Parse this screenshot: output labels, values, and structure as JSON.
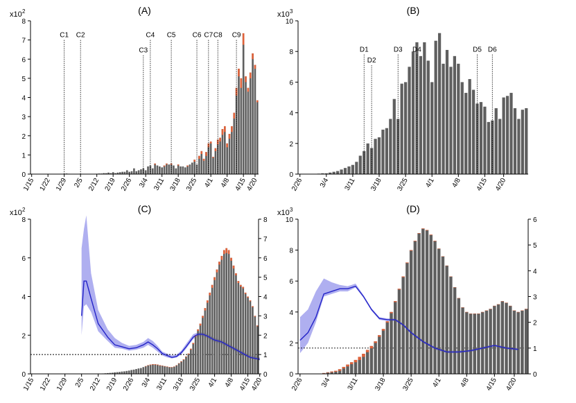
{
  "colors": {
    "bar": "#5f5f5f",
    "bar_top": "#e0623a",
    "line": "#2323c8",
    "band": "#a6a6ee",
    "axis": "#000000"
  },
  "chart_data": [
    {
      "id": "A",
      "type": "bar",
      "title": "(A)",
      "exponent_label": "x10",
      "exponent_power": "2",
      "ylim": [
        0,
        8
      ],
      "yticks": [
        "0",
        "1",
        "2",
        "3",
        "4",
        "5",
        "6",
        "7",
        "8"
      ],
      "x_start": "1/15",
      "xtick_labels": [
        "1/15",
        "1/22",
        "1/29",
        "2/5",
        "2/12",
        "2/19",
        "2/26",
        "3/4",
        "3/11",
        "3/18",
        "3/25",
        "4/1",
        "4/8",
        "4/15",
        "4/20"
      ],
      "xtick_index": [
        0,
        7,
        14,
        21,
        28,
        35,
        42,
        49,
        56,
        63,
        70,
        77,
        84,
        91,
        96
      ],
      "series": [
        {
          "name": "cases",
          "values": [
            0,
            0,
            0,
            0,
            0,
            0,
            0,
            0,
            0,
            0,
            0,
            0,
            0,
            0,
            0.02,
            0.03,
            0.02,
            0,
            0,
            0,
            0,
            0,
            0,
            0,
            0,
            0,
            0,
            0,
            0.02,
            0.03,
            0.03,
            0.05,
            0.05,
            0.08,
            0.05,
            0.1,
            0.05,
            0.08,
            0.1,
            0.12,
            0.12,
            0.2,
            0.12,
            0.15,
            0.3,
            0.15,
            0.2,
            0.25,
            0.3,
            0.2,
            0.4,
            0.45,
            0.3,
            0.55,
            0.45,
            0.4,
            0.35,
            0.45,
            0.55,
            0.5,
            0.55,
            0.45,
            0.3,
            0.5,
            0.4,
            0.4,
            0.35,
            0.45,
            0.5,
            0.6,
            0.75,
            0.5,
            0.95,
            1.2,
            0.8,
            1.15,
            1.6,
            1.7,
            0.9,
            1.35,
            1.8,
            1.9,
            2.35,
            2.5,
            1.6,
            2.1,
            2.5,
            3.2,
            4.5,
            5.5,
            5,
            7.35,
            5.1,
            4.5,
            5.3,
            6.3,
            5.7,
            3.85
          ]
        },
        {
          "name": "recent_cases",
          "values": [
            0,
            0,
            0,
            0,
            0,
            0,
            0,
            0,
            0,
            0,
            0,
            0,
            0,
            0,
            0,
            0,
            0,
            0,
            0,
            0,
            0,
            0,
            0,
            0,
            0,
            0,
            0,
            0,
            0,
            0,
            0,
            0,
            0,
            0,
            0,
            0,
            0,
            0,
            0,
            0,
            0,
            0,
            0,
            0,
            0,
            0,
            0,
            0,
            0,
            0,
            0,
            0,
            0,
            0.05,
            0,
            0,
            0,
            0.05,
            0.05,
            0,
            0.05,
            0,
            0,
            0.05,
            0,
            0,
            0,
            0.05,
            0,
            0,
            0.1,
            0,
            0.15,
            0.15,
            0.1,
            0.2,
            0.2,
            0.1,
            0.05,
            0.15,
            0.25,
            0.2,
            0.3,
            0.3,
            0.2,
            0.25,
            0.3,
            0.3,
            0.4,
            0.4,
            0.5,
            0.6,
            0.3,
            0.2,
            0.3,
            0.3,
            0.2,
            0.1
          ]
        }
      ],
      "markers": [
        {
          "label": "C1",
          "x": 14,
          "top": 7.0
        },
        {
          "label": "C2",
          "x": 21,
          "top": 7.0
        },
        {
          "label": "C3",
          "x": 48,
          "top": 6.2
        },
        {
          "label": "C4",
          "x": 51,
          "top": 7.0
        },
        {
          "label": "C5",
          "x": 60,
          "top": 7.0
        },
        {
          "label": "C6",
          "x": 71,
          "top": 7.0
        },
        {
          "label": "C7",
          "x": 76,
          "top": 7.0
        },
        {
          "label": "C8",
          "x": 80,
          "top": 7.0
        },
        {
          "label": "C9",
          "x": 88,
          "top": 7.0
        }
      ]
    },
    {
      "id": "B",
      "type": "bar",
      "title": "(B)",
      "exponent_label": "x10",
      "exponent_power": "3",
      "ylim": [
        0,
        10
      ],
      "yticks": [
        "0",
        "2",
        "4",
        "6",
        "8",
        "10"
      ],
      "x_start": "2/26",
      "xtick_labels": [
        "2/26",
        "3/4",
        "3/11",
        "3/18",
        "3/25",
        "4/1",
        "4/8",
        "4/15",
        "4/20"
      ],
      "xtick_index": [
        0,
        7,
        14,
        21,
        28,
        35,
        42,
        49,
        54
      ],
      "series": [
        {
          "name": "cases",
          "values": [
            0,
            0,
            0,
            0,
            0.02,
            0.03,
            0.05,
            0.05,
            0.1,
            0.15,
            0.2,
            0.3,
            0.4,
            0.5,
            0.6,
            0.8,
            1.2,
            1.5,
            2.0,
            1.7,
            2.3,
            2.4,
            2.9,
            3.0,
            3.6,
            4.9,
            3.6,
            5.9,
            6.0,
            7.0,
            8.0,
            8.6,
            7.7,
            8.6,
            7.4,
            6.0,
            8.7,
            9.2,
            7.2,
            8.1,
            7.0,
            7.7,
            7.2,
            6.0,
            5.3,
            6.2,
            5.5,
            4.6,
            4.7,
            4.4,
            3.4,
            3.5,
            4.3,
            3.6,
            5.0,
            5.1,
            5.3,
            4.3,
            3.6,
            4.2,
            4.3
          ]
        }
      ],
      "markers": [
        {
          "label": "D1",
          "x": 17,
          "top": 7.8
        },
        {
          "label": "D2",
          "x": 19,
          "top": 7.1
        },
        {
          "label": "D3",
          "x": 26,
          "top": 7.8
        },
        {
          "label": "D4",
          "x": 31,
          "top": 7.8
        },
        {
          "label": "D5",
          "x": 47,
          "top": 7.8
        },
        {
          "label": "D6",
          "x": 51,
          "top": 7.8
        }
      ]
    },
    {
      "id": "C",
      "type": "bar",
      "title": "(C)",
      "exponent_label": "x10",
      "exponent_power": "2",
      "ylim": [
        0,
        8
      ],
      "yticks": [
        "0",
        "2",
        "4",
        "6",
        "8"
      ],
      "y2lim": [
        0,
        8
      ],
      "y2ticks": [
        "0",
        "1",
        "2",
        "3",
        "4",
        "5",
        "6",
        "7",
        "8"
      ],
      "reference_line": 1,
      "x_start": "1/15",
      "xtick_labels": [
        "1/15",
        "1/22",
        "1/29",
        "2/5",
        "2/12",
        "2/19",
        "2/26",
        "3/4",
        "3/11",
        "3/18",
        "3/25",
        "4/1",
        "4/8",
        "4/15",
        "4/20"
      ],
      "xtick_index": [
        0,
        7,
        14,
        21,
        28,
        35,
        42,
        49,
        56,
        63,
        70,
        77,
        84,
        91,
        96
      ],
      "series": [
        {
          "name": "cases",
          "values": [
            0,
            0,
            0,
            0,
            0,
            0,
            0,
            0,
            0,
            0,
            0,
            0,
            0,
            0,
            0,
            0,
            0,
            0,
            0,
            0,
            0,
            0,
            0,
            0,
            0,
            0,
            0,
            0,
            0,
            0,
            0.02,
            0.03,
            0.04,
            0.05,
            0.06,
            0.08,
            0.09,
            0.1,
            0.12,
            0.13,
            0.15,
            0.17,
            0.2,
            0.22,
            0.25,
            0.28,
            0.3,
            0.35,
            0.4,
            0.45,
            0.48,
            0.5,
            0.5,
            0.48,
            0.45,
            0.43,
            0.4,
            0.38,
            0.35,
            0.35,
            0.38,
            0.45,
            0.55,
            0.65,
            0.75,
            0.9,
            1.05,
            1.3,
            1.6,
            2.0,
            2.3,
            2.6,
            3.0,
            3.4,
            3.8,
            4.2,
            4.6,
            5.0,
            5.4,
            5.8,
            6.1,
            6.4,
            6.5,
            6.4,
            6.0,
            5.6,
            5.2,
            4.8,
            4.6,
            4.5,
            4.2,
            4.0,
            3.8,
            3.5,
            3.0,
            2.5
          ]
        },
        {
          "name": "recent_cases",
          "values": [
            0,
            0,
            0,
            0,
            0,
            0,
            0,
            0,
            0,
            0,
            0,
            0,
            0,
            0,
            0,
            0,
            0,
            0,
            0,
            0,
            0,
            0,
            0,
            0,
            0,
            0,
            0,
            0,
            0,
            0,
            0,
            0,
            0,
            0,
            0,
            0,
            0,
            0,
            0,
            0,
            0,
            0,
            0,
            0,
            0,
            0,
            0,
            0,
            0.02,
            0.02,
            0.03,
            0.03,
            0.03,
            0.03,
            0.03,
            0.02,
            0.02,
            0.02,
            0.02,
            0.02,
            0.02,
            0.02,
            0.02,
            0.03,
            0.03,
            0.03,
            0.04,
            0.05,
            0.06,
            0.08,
            0.08,
            0.1,
            0.1,
            0.12,
            0.12,
            0.14,
            0.15,
            0.15,
            0.15,
            0.15,
            0.2,
            0.2,
            0.25,
            0.2,
            0.15,
            0.15,
            0.1,
            0.1,
            0.08,
            0.08,
            0.06,
            0.06,
            0.05,
            0.05,
            0.04,
            0.04
          ]
        }
      ],
      "rt_line": {
        "x": [
          21,
          22,
          23,
          25,
          28,
          32,
          35,
          38,
          41,
          44,
          47,
          49,
          51,
          53,
          55,
          57,
          59,
          61,
          63,
          65,
          68,
          70,
          72,
          74,
          77,
          80,
          83,
          86,
          89,
          92,
          94,
          96
        ],
        "y": [
          3.0,
          4.8,
          4.8,
          3.9,
          2.6,
          1.9,
          1.5,
          1.4,
          1.3,
          1.35,
          1.5,
          1.65,
          1.5,
          1.3,
          1.05,
          0.95,
          0.85,
          0.9,
          1.1,
          1.4,
          1.9,
          2.05,
          2.05,
          1.95,
          1.75,
          1.65,
          1.45,
          1.25,
          1.05,
          0.85,
          0.8,
          0.75
        ],
        "lower": [
          2.0,
          3.5,
          3.6,
          3.2,
          2.2,
          1.7,
          1.35,
          1.3,
          1.2,
          1.25,
          1.35,
          1.5,
          1.35,
          1.15,
          0.95,
          0.85,
          0.8,
          0.85,
          1.0,
          1.3,
          1.8,
          1.95,
          1.95,
          1.85,
          1.65,
          1.55,
          1.35,
          1.15,
          0.95,
          0.8,
          0.75,
          0.7
        ],
        "upper": [
          6.5,
          7.5,
          8.2,
          5.2,
          3.3,
          2.3,
          1.85,
          1.6,
          1.45,
          1.5,
          1.65,
          1.85,
          1.7,
          1.45,
          1.15,
          1.05,
          0.95,
          1.0,
          1.2,
          1.55,
          2.05,
          2.15,
          2.15,
          2.05,
          1.85,
          1.75,
          1.55,
          1.35,
          1.15,
          0.95,
          0.9,
          0.85
        ]
      }
    },
    {
      "id": "D",
      "type": "bar",
      "title": "(D)",
      "exponent_label": "x10",
      "exponent_power": "3",
      "ylim": [
        0,
        10
      ],
      "yticks": [
        "0",
        "2",
        "4",
        "6",
        "8",
        "10"
      ],
      "y2lim": [
        0,
        6
      ],
      "y2ticks": [
        "0",
        "1",
        "2",
        "3",
        "4",
        "5",
        "6"
      ],
      "reference_line": 1,
      "x_start": "2/26",
      "xtick_labels": [
        "2/26",
        "3/4",
        "3/11",
        "3/18",
        "3/25",
        "4/1",
        "4/8",
        "4/15",
        "4/20"
      ],
      "xtick_index": [
        0,
        7,
        14,
        21,
        28,
        35,
        42,
        49,
        54
      ],
      "series": [
        {
          "name": "cases",
          "values": [
            0,
            0,
            0,
            0,
            0,
            0.02,
            0.05,
            0.1,
            0.15,
            0.2,
            0.3,
            0.45,
            0.6,
            0.75,
            0.9,
            1.1,
            1.3,
            1.55,
            1.8,
            2.1,
            2.5,
            2.9,
            3.4,
            4.0,
            4.7,
            5.5,
            6.3,
            7.2,
            8.0,
            8.6,
            9.1,
            9.4,
            9.3,
            9.0,
            8.6,
            8.1,
            7.6,
            7.0,
            6.3,
            5.6,
            4.9,
            4.3,
            4.0,
            3.9,
            3.9,
            3.9,
            4.0,
            4.1,
            4.2,
            4.4,
            4.5,
            4.7,
            4.6,
            4.4,
            4.1,
            4.0,
            4.1,
            4.2
          ]
        },
        {
          "name": "recent_cases",
          "values": [
            0,
            0,
            0,
            0,
            0,
            0,
            0.02,
            0.03,
            0.05,
            0.06,
            0.1,
            0.1,
            0.12,
            0.12,
            0.15,
            0.2,
            0.2,
            0.15,
            0.15,
            0.1,
            0.1,
            0.1,
            0.08,
            0.08,
            0.06,
            0.05,
            0.05,
            0.04,
            0.04,
            0.03,
            0.03,
            0.03,
            0.03,
            0.03,
            0.03,
            0.02,
            0.02,
            0.02,
            0.02,
            0.02,
            0.02,
            0.02,
            0.02,
            0.02,
            0.02,
            0.02,
            0.02,
            0.02,
            0.02,
            0.02,
            0.02,
            0.02,
            0.02,
            0.02,
            0.02,
            0.02,
            0.02,
            0.02
          ]
        }
      ],
      "rt_line": {
        "x": [
          0,
          2,
          4,
          6,
          8,
          10,
          12,
          14,
          16,
          18,
          20,
          22,
          24,
          26,
          28,
          31,
          34,
          37,
          40,
          43,
          46,
          49,
          52,
          55
        ],
        "y": [
          1.3,
          1.6,
          2.2,
          3.1,
          3.2,
          3.3,
          3.3,
          3.4,
          3.0,
          2.5,
          2.15,
          2.1,
          2.1,
          1.9,
          1.6,
          1.25,
          1.0,
          0.85,
          0.85,
          0.9,
          1.0,
          1.1,
          1.0,
          0.95
        ],
        "lower": [
          0.8,
          1.2,
          2.0,
          3.0,
          3.1,
          3.2,
          3.2,
          3.35,
          2.95,
          2.45,
          2.1,
          2.05,
          2.05,
          1.85,
          1.55,
          1.2,
          0.95,
          0.8,
          0.8,
          0.85,
          0.95,
          1.05,
          0.95,
          0.9
        ],
        "upper": [
          2.2,
          2.5,
          3.2,
          3.7,
          3.55,
          3.45,
          3.4,
          3.5,
          3.05,
          2.55,
          2.2,
          2.15,
          2.15,
          1.95,
          1.65,
          1.3,
          1.05,
          0.9,
          0.9,
          0.95,
          1.05,
          1.15,
          1.05,
          1.0
        ]
      }
    }
  ]
}
